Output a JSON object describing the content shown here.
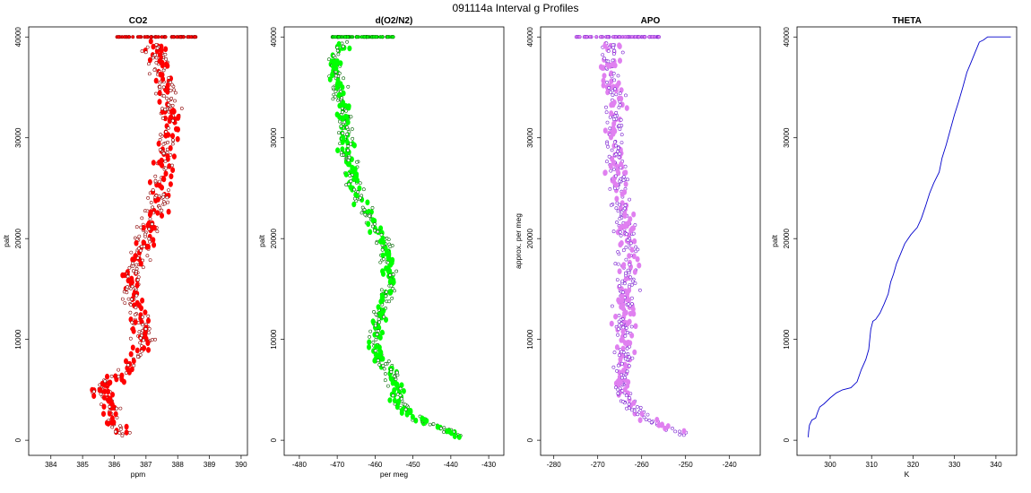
{
  "figure": {
    "title": "091114a   Interval g Profiles"
  },
  "chart_data": [
    {
      "type": "scatter",
      "title": "CO2",
      "xlabel": "ppm",
      "ylabel": "palt",
      "xlim": [
        383.3,
        390.2
      ],
      "ylim": [
        -1500,
        41000
      ],
      "xticks": [
        "384",
        "385",
        "386",
        "387",
        "388",
        "389",
        "390"
      ],
      "yticks": [
        "0",
        "10000",
        "20000",
        "30000",
        "40000"
      ],
      "color": "#ff0000",
      "edge_color": "#8b0000",
      "series": [
        {
          "profile": [
            [
              40000,
              387.0
            ],
            [
              38000,
              387.4
            ],
            [
              36000,
              387.6
            ],
            [
              34000,
              387.7
            ],
            [
              32000,
              387.8
            ],
            [
              30000,
              387.6
            ],
            [
              28000,
              387.6
            ],
            [
              26000,
              387.6
            ],
            [
              24000,
              387.4
            ],
            [
              22000,
              387.3
            ],
            [
              20000,
              386.9
            ],
            [
              18000,
              386.8
            ],
            [
              16000,
              386.6
            ],
            [
              14000,
              386.6
            ],
            [
              12000,
              386.8
            ],
            [
              10000,
              386.9
            ],
            [
              8000,
              386.6
            ],
            [
              7000,
              386.4
            ],
            [
              6000,
              386.0
            ],
            [
              5000,
              385.5
            ],
            [
              4000,
              385.8
            ],
            [
              3000,
              386.0
            ],
            [
              2000,
              385.9
            ],
            [
              1000,
              386.2
            ],
            [
              300,
              386.3
            ]
          ],
          "spread": 0.5,
          "top_cluster_range": [
            386.0,
            388.6
          ]
        }
      ]
    },
    {
      "type": "scatter",
      "title": "d(O2/N2)",
      "xlabel": "per meg",
      "ylabel": "palt",
      "xlim": [
        -484,
        -426
      ],
      "ylim": [
        -1500,
        41000
      ],
      "xticks": [
        "-480",
        "-470",
        "-460",
        "-450",
        "-440",
        "-430"
      ],
      "yticks": [
        "0",
        "10000",
        "20000",
        "30000",
        "40000"
      ],
      "color": "#00ff00",
      "edge_color": "#006400",
      "series": [
        {
          "profile": [
            [
              40000,
              -467
            ],
            [
              38000,
              -471
            ],
            [
              36000,
              -470
            ],
            [
              34000,
              -469
            ],
            [
              32000,
              -468
            ],
            [
              30000,
              -468
            ],
            [
              28000,
              -467
            ],
            [
              26000,
              -466
            ],
            [
              24000,
              -464
            ],
            [
              22000,
              -461
            ],
            [
              20000,
              -458
            ],
            [
              18000,
              -457
            ],
            [
              16000,
              -456
            ],
            [
              14000,
              -457
            ],
            [
              12000,
              -459
            ],
            [
              10000,
              -460
            ],
            [
              8000,
              -459
            ],
            [
              7000,
              -456
            ],
            [
              6000,
              -455
            ],
            [
              5000,
              -455
            ],
            [
              4000,
              -454
            ],
            [
              3000,
              -452
            ],
            [
              2000,
              -448
            ],
            [
              1000,
              -441
            ],
            [
              300,
              -437
            ]
          ],
          "spread": 3.0,
          "top_cluster_range": [
            -472,
            -455
          ]
        }
      ]
    },
    {
      "type": "scatter",
      "title": "APO",
      "xlabel": "approx. per meg",
      "ylabel": "",
      "axis_xlabel": "",
      "xlim": [
        -283,
        -233
      ],
      "ylim": [
        -1500,
        41000
      ],
      "xticks": [
        "-280",
        "-270",
        "-260",
        "-250",
        "-240"
      ],
      "yticks": [
        "0",
        "10000",
        "20000",
        "30000",
        "40000"
      ],
      "color": "#e080f0",
      "edge_color": "#7a1fd0",
      "series": [
        {
          "profile": [
            [
              40000,
              -266
            ],
            [
              38000,
              -267
            ],
            [
              36000,
              -267
            ],
            [
              34000,
              -266
            ],
            [
              32000,
              -266
            ],
            [
              30000,
              -266
            ],
            [
              28000,
              -266
            ],
            [
              26000,
              -265
            ],
            [
              24000,
              -265
            ],
            [
              22000,
              -264
            ],
            [
              20000,
              -263
            ],
            [
              18000,
              -263
            ],
            [
              16000,
              -263
            ],
            [
              14000,
              -264
            ],
            [
              12000,
              -264
            ],
            [
              10000,
              -264
            ],
            [
              8000,
              -264
            ],
            [
              6000,
              -264
            ],
            [
              5000,
              -265
            ],
            [
              4000,
              -263
            ],
            [
              3000,
              -261
            ],
            [
              2000,
              -258
            ],
            [
              1000,
              -253
            ],
            [
              300,
              -250
            ]
          ],
          "spread": 3.5,
          "top_cluster_range": [
            -275,
            -256
          ]
        }
      ]
    },
    {
      "type": "line",
      "title": "THETA",
      "xlabel": "K",
      "ylabel": "palt",
      "xlim": [
        292,
        345
      ],
      "ylim": [
        -1500,
        41000
      ],
      "xticks": [
        "300",
        "310",
        "320",
        "330",
        "340"
      ],
      "yticks": [
        "0",
        "10000",
        "20000",
        "30000",
        "40000"
      ],
      "color": "#0000cc",
      "series": [
        {
          "points": [
            [
              294.7,
              300
            ],
            [
              294.8,
              800
            ],
            [
              295.0,
              1500
            ],
            [
              295.6,
              2000
            ],
            [
              296.5,
              2200
            ],
            [
              297.0,
              2800
            ],
            [
              297.5,
              3300
            ],
            [
              298.5,
              3600
            ],
            [
              300.0,
              4200
            ],
            [
              301.5,
              4700
            ],
            [
              303.0,
              5000
            ],
            [
              305.0,
              5200
            ],
            [
              306.5,
              5800
            ],
            [
              307.5,
              7000
            ],
            [
              308.6,
              8000
            ],
            [
              309.3,
              9000
            ],
            [
              309.8,
              11000
            ],
            [
              310.3,
              11800
            ],
            [
              311.0,
              12000
            ],
            [
              312.0,
              12600
            ],
            [
              313.0,
              13500
            ],
            [
              314.0,
              14500
            ],
            [
              314.6,
              15700
            ],
            [
              315.3,
              16500
            ],
            [
              316.0,
              17500
            ],
            [
              317.0,
              18500
            ],
            [
              318.0,
              19500
            ],
            [
              319.5,
              20400
            ],
            [
              321.0,
              21100
            ],
            [
              322.0,
              22000
            ],
            [
              323.0,
              23200
            ],
            [
              324.0,
              24500
            ],
            [
              325.0,
              25500
            ],
            [
              326.3,
              26600
            ],
            [
              327.0,
              28000
            ],
            [
              328.0,
              29300
            ],
            [
              329.0,
              30800
            ],
            [
              330.0,
              32300
            ],
            [
              331.0,
              33600
            ],
            [
              332.0,
              35000
            ],
            [
              333.0,
              36500
            ],
            [
              334.0,
              37500
            ],
            [
              335.0,
              38500
            ],
            [
              336.0,
              39500
            ],
            [
              337.0,
              39700
            ],
            [
              338.0,
              40000
            ],
            [
              343.6,
              40000
            ]
          ]
        }
      ]
    }
  ]
}
